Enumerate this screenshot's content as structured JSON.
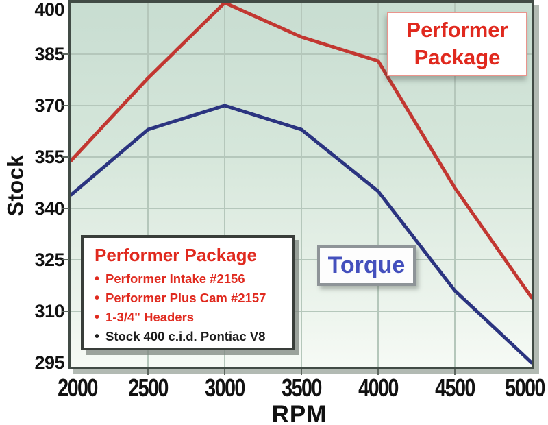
{
  "chart_data": {
    "type": "line",
    "x": [
      2000,
      2500,
      3000,
      3500,
      4000,
      4500,
      5000
    ],
    "x_tick_labels": [
      "2000",
      "2500",
      "3000",
      "3500",
      "4000",
      "4500",
      "5000"
    ],
    "y_ticks": [
      400,
      385,
      370,
      355,
      340,
      325,
      310,
      295
    ],
    "xlim": [
      2000,
      5000
    ],
    "ylim": [
      295,
      400
    ],
    "xlabel": "RPM",
    "ylabel": "Stock",
    "grid": true,
    "legend_position": "inside bottom-left box; series labels as floating boxes",
    "series": [
      {
        "name": "Performer Package",
        "color": "#c23731",
        "values": [
          354,
          378,
          400,
          390,
          383,
          346,
          314
        ]
      },
      {
        "name": "Stock (Torque)",
        "color": "#2b3480",
        "values": [
          344,
          363,
          370,
          363,
          345,
          316,
          295
        ]
      }
    ]
  },
  "axes": {
    "ylabel": "Stock",
    "xlabel": "RPM"
  },
  "callout": {
    "line1": "Performer",
    "line2": "Package",
    "text_color": "#e0291e"
  },
  "torque_label": {
    "text": "Torque",
    "text_color": "#4450bd"
  },
  "legend": {
    "title": "Performer Package",
    "title_color": "#e0291e",
    "items": [
      {
        "text": "Performer Intake #2156",
        "color": "#e0291e"
      },
      {
        "text": "Performer Plus Cam #2157",
        "color": "#e0291e"
      },
      {
        "text": "1-3/4\" Headers",
        "color": "#e0291e"
      },
      {
        "text": "Stock 400 c.i.d. Pontiac V8",
        "color": "#1c1c1c"
      }
    ]
  },
  "colors": {
    "performer_line": "#c23731",
    "stock_line": "#2b3480",
    "gridline": "#b5c7bb",
    "frame": "#414b45",
    "plot_bg_top": "#c8ddd1",
    "plot_bg_bottom": "#f6faf5"
  }
}
